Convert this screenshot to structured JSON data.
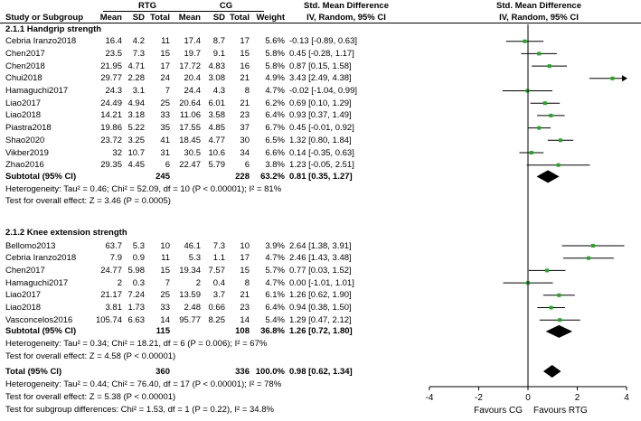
{
  "chart_data": {
    "type": "forest",
    "header": {
      "group_top": [
        "RTG",
        "CG",
        "Std. Mean Difference",
        "Std. Mean Difference"
      ],
      "columns": [
        "Study or Subgroup",
        "Mean",
        "SD",
        "Total",
        "Mean",
        "SD",
        "Total",
        "Weight",
        "IV, Random, 95% CI",
        "IV, Random, 95% CI"
      ]
    },
    "subgroups": [
      {
        "title": "2.1.1 Handgrip strength",
        "studies": [
          {
            "study": "Cebria Iranzo2018",
            "rtg_mean": "16.4",
            "rtg_sd": "4.2",
            "rtg_total": "11",
            "cg_mean": "17.4",
            "cg_sd": "8.7",
            "cg_total": "17",
            "weight": "5.6%",
            "ci": "-0.13 [-0.89, 0.63]",
            "est": -0.13,
            "lo": -0.89,
            "hi": 0.63
          },
          {
            "study": "Chen2017",
            "rtg_mean": "23.5",
            "rtg_sd": "7.3",
            "rtg_total": "15",
            "cg_mean": "19.7",
            "cg_sd": "9.1",
            "cg_total": "15",
            "weight": "5.8%",
            "ci": "0.45 [-0.28, 1.17]",
            "est": 0.45,
            "lo": -0.28,
            "hi": 1.17
          },
          {
            "study": "Chen2018",
            "rtg_mean": "21.95",
            "rtg_sd": "4.71",
            "rtg_total": "17",
            "cg_mean": "17.72",
            "cg_sd": "4.83",
            "cg_total": "16",
            "weight": "5.8%",
            "ci": "0.87 [0.15, 1.58]",
            "est": 0.87,
            "lo": 0.15,
            "hi": 1.58
          },
          {
            "study": "Chui2018",
            "rtg_mean": "29.77",
            "rtg_sd": "2.28",
            "rtg_total": "24",
            "cg_mean": "20.4",
            "cg_sd": "3.08",
            "cg_total": "21",
            "weight": "4.9%",
            "ci": "3.43 [2.49, 4.38]",
            "est": 3.43,
            "lo": 2.49,
            "hi": 4.38
          },
          {
            "study": "Hamaguchi2017",
            "rtg_mean": "24.3",
            "rtg_sd": "3.1",
            "rtg_total": "7",
            "cg_mean": "24.4",
            "cg_sd": "4.3",
            "cg_total": "8",
            "weight": "4.7%",
            "ci": "-0.02 [-1.04, 0.99]",
            "est": -0.02,
            "lo": -1.04,
            "hi": 0.99
          },
          {
            "study": "Liao2017",
            "rtg_mean": "24.49",
            "rtg_sd": "4.94",
            "rtg_total": "25",
            "cg_mean": "20.64",
            "cg_sd": "6.01",
            "cg_total": "21",
            "weight": "6.2%",
            "ci": "0.69 [0.10, 1.29]",
            "est": 0.69,
            "lo": 0.1,
            "hi": 1.29
          },
          {
            "study": "Liao2018",
            "rtg_mean": "14.21",
            "rtg_sd": "3.18",
            "rtg_total": "33",
            "cg_mean": "11.06",
            "cg_sd": "3.58",
            "cg_total": "23",
            "weight": "6.4%",
            "ci": "0.93 [0.37, 1.49]",
            "est": 0.93,
            "lo": 0.37,
            "hi": 1.49
          },
          {
            "study": "Piastra2018",
            "rtg_mean": "19.86",
            "rtg_sd": "5.22",
            "rtg_total": "35",
            "cg_mean": "17.55",
            "cg_sd": "4.85",
            "cg_total": "37",
            "weight": "6.7%",
            "ci": "0.45 [-0.01, 0.92]",
            "est": 0.45,
            "lo": -0.01,
            "hi": 0.92
          },
          {
            "study": "Shao2020",
            "rtg_mean": "23.72",
            "rtg_sd": "3.25",
            "rtg_total": "41",
            "cg_mean": "18.45",
            "cg_sd": "4.77",
            "cg_total": "30",
            "weight": "6.5%",
            "ci": "1.32 [0.80, 1.84]",
            "est": 1.32,
            "lo": 0.8,
            "hi": 1.84
          },
          {
            "study": "Vikber2019",
            "rtg_mean": "32",
            "rtg_sd": "10.7",
            "rtg_total": "31",
            "cg_mean": "30.5",
            "cg_sd": "10.6",
            "cg_total": "34",
            "weight": "6.6%",
            "ci": "0.14 [-0.35, 0.63]",
            "est": 0.14,
            "lo": -0.35,
            "hi": 0.63
          },
          {
            "study": "Zhao2016",
            "rtg_mean": "29.35",
            "rtg_sd": "4.45",
            "rtg_total": "6",
            "cg_mean": "22.47",
            "cg_sd": "5.79",
            "cg_total": "6",
            "weight": "3.8%",
            "ci": "1.23 [-0.05, 2.51]",
            "est": 1.23,
            "lo": -0.05,
            "hi": 2.51
          }
        ],
        "subtotal": {
          "label": "Subtotal (95% CI)",
          "rtg_total": "245",
          "cg_total": "228",
          "weight": "63.2%",
          "ci": "0.81 [0.35, 1.27]",
          "est": 0.81,
          "lo": 0.35,
          "hi": 1.27
        },
        "heterogeneity": "Heterogeneity: Tau² = 0.46; Chi² = 52.09, df = 10 (P < 0.00001); I² = 81%",
        "overall_effect": "Test for overall effect: Z = 3.46 (P = 0.0005)"
      },
      {
        "title": "2.1.2 Knee extension strength",
        "studies": [
          {
            "study": "Bellomo2013",
            "rtg_mean": "63.7",
            "rtg_sd": "5.3",
            "rtg_total": "10",
            "cg_mean": "46.1",
            "cg_sd": "7.3",
            "cg_total": "10",
            "weight": "3.9%",
            "ci": "2.64 [1.38, 3.91]",
            "est": 2.64,
            "lo": 1.38,
            "hi": 3.91
          },
          {
            "study": "Cebria Iranzo2018",
            "rtg_mean": "7.9",
            "rtg_sd": "0.9",
            "rtg_total": "11",
            "cg_mean": "5.3",
            "cg_sd": "1.1",
            "cg_total": "17",
            "weight": "4.7%",
            "ci": "2.46 [1.43, 3.48]",
            "est": 2.46,
            "lo": 1.43,
            "hi": 3.48
          },
          {
            "study": "Chen2017",
            "rtg_mean": "24.77",
            "rtg_sd": "5.98",
            "rtg_total": "15",
            "cg_mean": "19.34",
            "cg_sd": "7.57",
            "cg_total": "15",
            "weight": "5.7%",
            "ci": "0.77 [0.03, 1.52]",
            "est": 0.77,
            "lo": 0.03,
            "hi": 1.52
          },
          {
            "study": "Hamaguchi2017",
            "rtg_mean": "2",
            "rtg_sd": "0.3",
            "rtg_total": "7",
            "cg_mean": "2",
            "cg_sd": "0.4",
            "cg_total": "8",
            "weight": "4.7%",
            "ci": "0.00 [-1.01, 1.01]",
            "est": 0.0,
            "lo": -1.01,
            "hi": 1.01
          },
          {
            "study": "Liao2017",
            "rtg_mean": "21.17",
            "rtg_sd": "7.24",
            "rtg_total": "25",
            "cg_mean": "13.59",
            "cg_sd": "3.7",
            "cg_total": "21",
            "weight": "6.1%",
            "ci": "1.26 [0.62, 1.90]",
            "est": 1.26,
            "lo": 0.62,
            "hi": 1.9
          },
          {
            "study": "Liao2018",
            "rtg_mean": "3.81",
            "rtg_sd": "1.73",
            "rtg_total": "33",
            "cg_mean": "2.48",
            "cg_sd": "0.66",
            "cg_total": "23",
            "weight": "6.4%",
            "ci": "0.94 [0.38, 1.50]",
            "est": 0.94,
            "lo": 0.38,
            "hi": 1.5
          },
          {
            "study": "Vasconcelos2016",
            "rtg_mean": "105.74",
            "rtg_sd": "6.63",
            "rtg_total": "14",
            "cg_mean": "95.77",
            "cg_sd": "8.25",
            "cg_total": "14",
            "weight": "5.4%",
            "ci": "1.29 [0.47, 2.12]",
            "est": 1.29,
            "lo": 0.47,
            "hi": 2.12
          }
        ],
        "subtotal": {
          "label": "Subtotal (95% CI)",
          "rtg_total": "115",
          "cg_total": "108",
          "weight": "36.8%",
          "ci": "1.26 [0.72, 1.80]",
          "est": 1.26,
          "lo": 0.72,
          "hi": 1.8
        },
        "heterogeneity": "Heterogeneity: Tau² = 0.34; Chi² = 18.21, df = 6 (P = 0.006); I² = 67%",
        "overall_effect": "Test for overall effect: Z = 4.58 (P < 0.00001)"
      }
    ],
    "total": {
      "label": "Total (95% CI)",
      "rtg_total": "360",
      "cg_total": "336",
      "weight": "100.0%",
      "ci": "0.98 [0.62, 1.34]",
      "est": 0.98,
      "lo": 0.62,
      "hi": 1.34
    },
    "total_heterogeneity": "Heterogeneity: Tau² = 0.44; Chi² = 76.40, df = 17 (P < 0.00001); I² = 78%",
    "total_overall_effect": "Test for overall effect: Z = 5.38 (P < 0.00001)",
    "subgroup_differences": "Test for subgroup differences: Chi² = 1.53, df = 1 (P = 0.22), I² = 34.8%",
    "xlim": [
      -4,
      4
    ],
    "xticks": [
      "-4",
      "-2",
      "0",
      "2",
      "4"
    ],
    "xtick_values": [
      -4,
      -2,
      0,
      2,
      4
    ],
    "favours_left": "Favours CG",
    "favours_right": "Favours RTG",
    "colors": {
      "point": "#22aa22",
      "line": "#000000",
      "diamond": "#000000"
    }
  }
}
